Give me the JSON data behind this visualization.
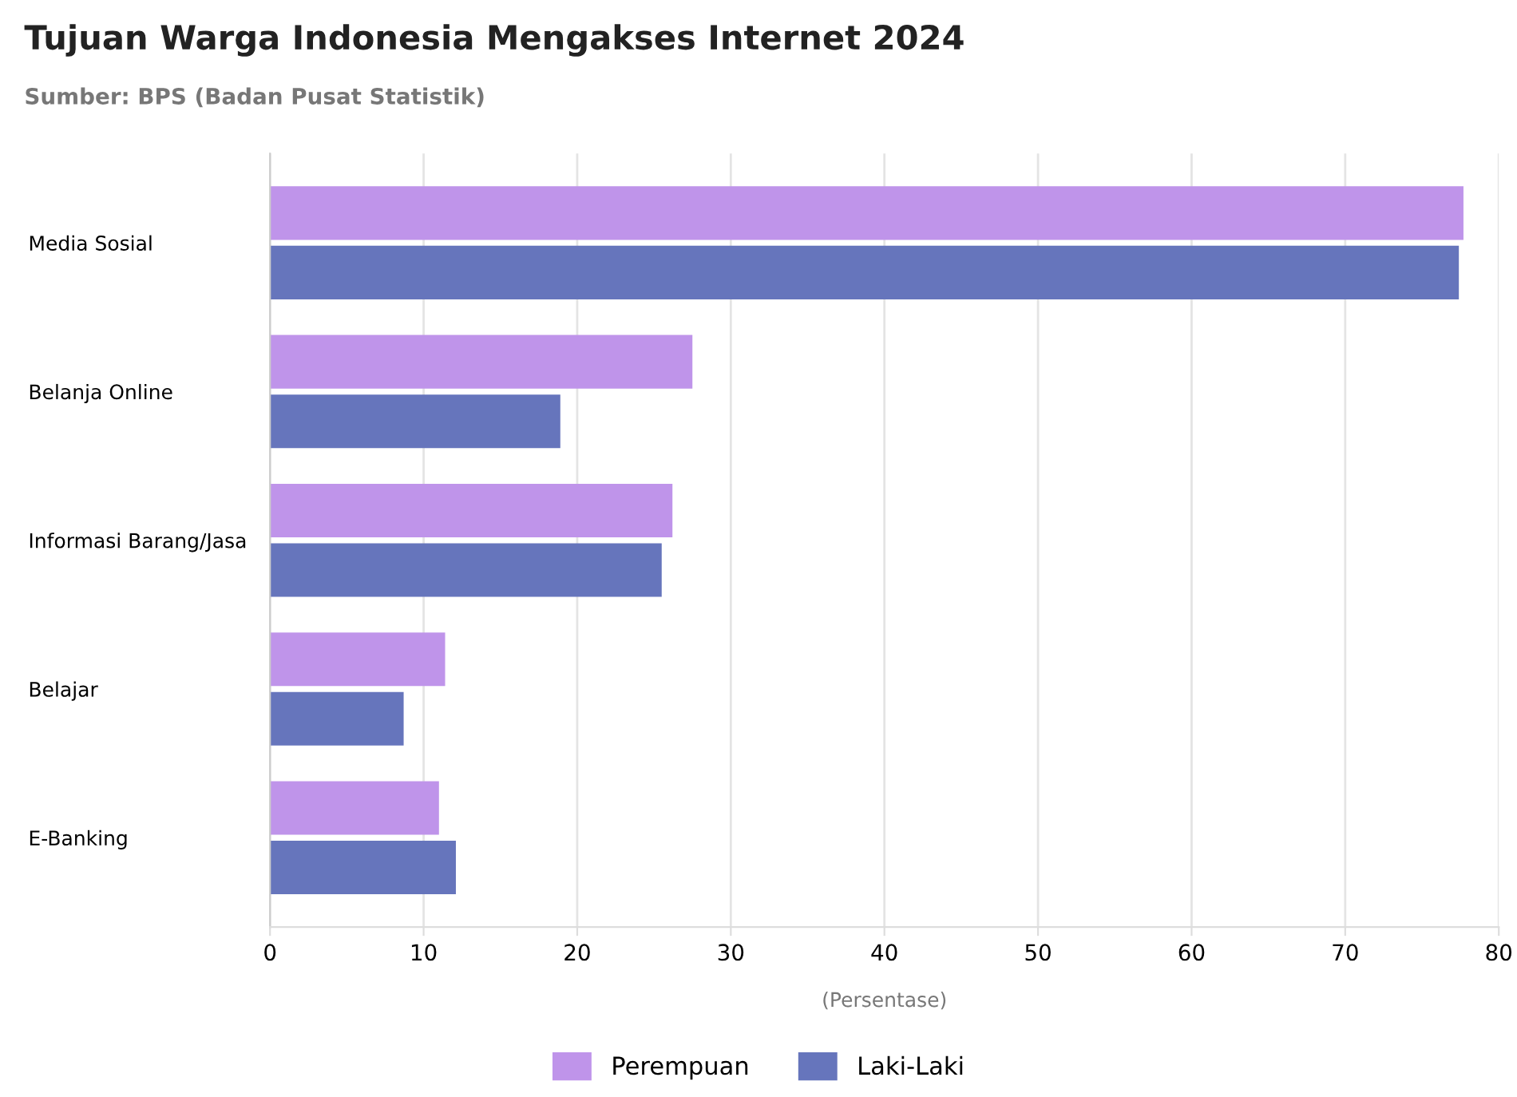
{
  "chart_data": {
    "type": "bar",
    "orientation": "horizontal",
    "title": "Tujuan Warga Indonesia Mengakses Internet 2024",
    "subtitle": "Sumber: BPS (Badan Pusat Statistik)",
    "xlabel": "(Persentase)",
    "categories": [
      "Media Sosial",
      "Belanja Online",
      "Informasi Barang/Jasa",
      "Belajar",
      "E-Banking"
    ],
    "series": [
      {
        "name": "Perempuan",
        "color": "#bf94ea",
        "values": [
          77.7,
          27.5,
          26.2,
          11.4,
          11.0
        ]
      },
      {
        "name": "Laki-Laki",
        "color": "#6675bc",
        "values": [
          77.4,
          18.9,
          25.5,
          8.7,
          12.1
        ]
      }
    ],
    "xlim": [
      0,
      80
    ],
    "xticks": [
      0,
      10,
      20,
      30,
      40,
      50,
      60,
      70,
      80
    ],
    "grid": "x",
    "legend": "bottom"
  }
}
